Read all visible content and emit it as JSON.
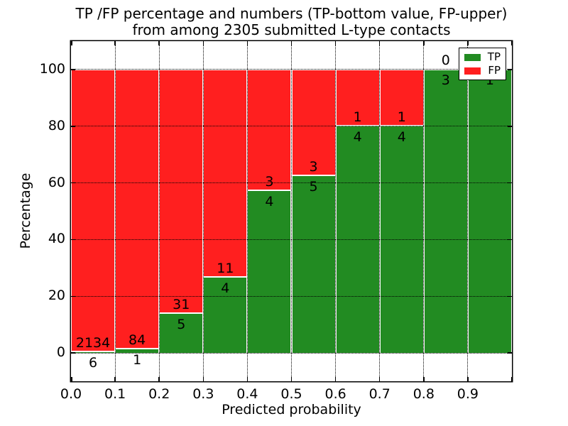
{
  "title": {
    "line1": "TP /FP percentage and numbers (TP-bottom value, FP-upper)",
    "line2": "from among 2305 submitted L-type contacts"
  },
  "chart_data": {
    "type": "bar",
    "subtype": "stacked-percentage-histogram",
    "title": "TP /FP percentage and numbers (TP-bottom value, FP-upper) from among 2305 submitted L-type contacts",
    "total_submitted": 2305,
    "xlabel": "Predicted probability",
    "ylabel": "Percentage",
    "xlim": [
      0.0,
      1.0
    ],
    "ylim": [
      -10,
      110
    ],
    "grid": true,
    "x_tick_labels": [
      "0.0",
      "0.1",
      "0.2",
      "0.3",
      "0.4",
      "0.5",
      "0.6",
      "0.7",
      "0.8",
      "0.9"
    ],
    "x_tick_values": [
      0.0,
      0.1,
      0.2,
      0.3,
      0.4,
      0.5,
      0.6,
      0.7,
      0.8,
      0.9
    ],
    "x_tick_marks": [
      0.0,
      0.1,
      0.2,
      0.3,
      0.4,
      0.5,
      0.6,
      0.7,
      0.8,
      0.9,
      1.0
    ],
    "y_tick_labels": [
      "0",
      "20",
      "40",
      "60",
      "80",
      "100"
    ],
    "y_tick_values": [
      0,
      20,
      40,
      60,
      80,
      100
    ],
    "colors": {
      "tp": "#228b22",
      "fp": "#ff1f1f"
    },
    "legend": {
      "position": "upper-right",
      "entries": [
        {
          "label": "TP",
          "color": "#228b22"
        },
        {
          "label": "FP",
          "color": "#ff1f1f"
        }
      ]
    },
    "categories": [
      "0.0-0.1",
      "0.1-0.2",
      "0.2-0.3",
      "0.3-0.4",
      "0.4-0.5",
      "0.5-0.6",
      "0.6-0.7",
      "0.7-0.8",
      "0.8-0.9",
      "0.9-1.0"
    ],
    "series": [
      {
        "name": "TP",
        "counts": [
          6,
          1,
          5,
          4,
          4,
          5,
          4,
          4,
          3,
          1
        ]
      },
      {
        "name": "FP",
        "counts": [
          2134,
          84,
          31,
          11,
          3,
          3,
          1,
          1,
          0,
          0
        ]
      }
    ],
    "bins": [
      {
        "x0": 0.0,
        "x1": 0.1,
        "tp": 6,
        "fp": 2134,
        "tp_pct": 0.28,
        "fp_pct": 99.72,
        "tp_label": "6",
        "fp_label": "2134"
      },
      {
        "x0": 0.1,
        "x1": 0.2,
        "tp": 1,
        "fp": 84,
        "tp_pct": 1.18,
        "fp_pct": 98.82,
        "tp_label": "1",
        "fp_label": "84"
      },
      {
        "x0": 0.2,
        "x1": 0.3,
        "tp": 5,
        "fp": 31,
        "tp_pct": 13.89,
        "fp_pct": 86.11,
        "tp_label": "5",
        "fp_label": "31"
      },
      {
        "x0": 0.3,
        "x1": 0.4,
        "tp": 4,
        "fp": 11,
        "tp_pct": 26.67,
        "fp_pct": 73.33,
        "tp_label": "4",
        "fp_label": "11"
      },
      {
        "x0": 0.4,
        "x1": 0.5,
        "tp": 4,
        "fp": 3,
        "tp_pct": 57.14,
        "fp_pct": 42.86,
        "tp_label": "4",
        "fp_label": "3"
      },
      {
        "x0": 0.5,
        "x1": 0.6,
        "tp": 5,
        "fp": 3,
        "tp_pct": 62.5,
        "fp_pct": 37.5,
        "tp_label": "5",
        "fp_label": "3"
      },
      {
        "x0": 0.6,
        "x1": 0.7,
        "tp": 4,
        "fp": 1,
        "tp_pct": 80,
        "fp_pct": 20,
        "tp_label": "4",
        "fp_label": "1"
      },
      {
        "x0": 0.7,
        "x1": 0.8,
        "tp": 4,
        "fp": 1,
        "tp_pct": 80,
        "fp_pct": 20,
        "tp_label": "4",
        "fp_label": "1"
      },
      {
        "x0": 0.8,
        "x1": 0.9,
        "tp": 3,
        "fp": 0,
        "tp_pct": 100,
        "fp_pct": 0,
        "tp_label": "3",
        "fp_label": "0"
      },
      {
        "x0": 0.9,
        "x1": 1.0,
        "tp": 1,
        "fp": 0,
        "tp_pct": 100,
        "fp_pct": 0,
        "tp_label": "1",
        "fp_label": ""
      }
    ]
  }
}
